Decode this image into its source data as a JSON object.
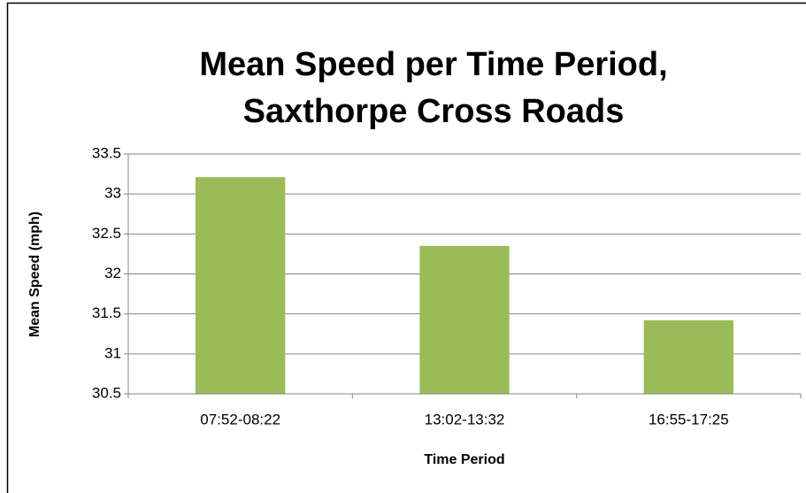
{
  "chart_data": {
    "type": "bar",
    "title": [
      "Mean Speed per Time Period,",
      "Saxthorpe Cross Roads"
    ],
    "x_label": "Time Period",
    "y_label": "Mean Speed (mph)",
    "categories": [
      "07:52-08:22",
      "13:02-13:32",
      "16:55-17:25"
    ],
    "values": [
      33.21,
      32.35,
      31.42
    ],
    "color": "#9bbb59",
    "ylim": [
      30.5,
      33.5
    ],
    "yticks": [
      30.5,
      31,
      31.5,
      32,
      32.5,
      33,
      33.5
    ],
    "grid": true
  }
}
